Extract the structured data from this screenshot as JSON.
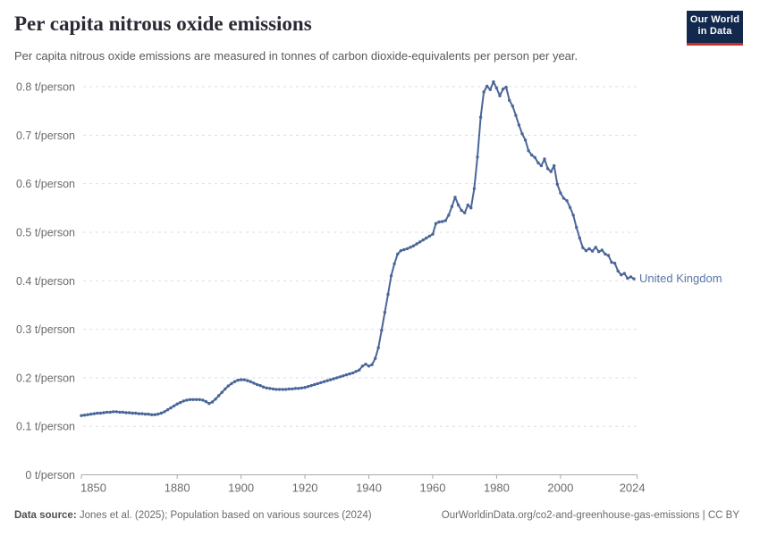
{
  "header": {
    "title": "Per capita nitrous oxide emissions",
    "subtitle": "Per capita nitrous oxide emissions are measured in tonnes of carbon dioxide-equivalents per person per year.",
    "logo": {
      "line1": "Our World",
      "line2": "in Data"
    }
  },
  "footer": {
    "source_label": "Data source:",
    "source_text": "Jones et al. (2025); Population based on various sources (2024)",
    "link_text": "OurWorldinData.org/co2-and-greenhouse-gas-emissions | CC BY"
  },
  "colors": {
    "series_line": "#4a6698",
    "series_label": "#5876a7",
    "gridline": "#dedede",
    "axis_line": "#a8a8a8",
    "tick_text": "#6b6b6b",
    "logo_bg": "#12294d",
    "logo_bar": "#c3312b"
  },
  "chart_data": {
    "type": "line",
    "title": "Per capita nitrous oxide emissions",
    "unit": "t/person",
    "xlabel": "",
    "ylabel": "t/person",
    "ylim": [
      0,
      0.8
    ],
    "xlim": [
      1850,
      2024
    ],
    "grid": "dashed horizontal",
    "legend_position": "end-of-line label",
    "point_markers": true,
    "y_ticks": [
      {
        "value": 0.0,
        "label": "0 t/person"
      },
      {
        "value": 0.1,
        "label": "0.1 t/person"
      },
      {
        "value": 0.2,
        "label": "0.2 t/person"
      },
      {
        "value": 0.3,
        "label": "0.3 t/person"
      },
      {
        "value": 0.4,
        "label": "0.4 t/person"
      },
      {
        "value": 0.5,
        "label": "0.5 t/person"
      },
      {
        "value": 0.6,
        "label": "0.6 t/person"
      },
      {
        "value": 0.7,
        "label": "0.7 t/person"
      },
      {
        "value": 0.8,
        "label": "0.8 t/person"
      }
    ],
    "x_ticks": [
      {
        "value": 1850,
        "label": "1850"
      },
      {
        "value": 1880,
        "label": "1880"
      },
      {
        "value": 1900,
        "label": "1900"
      },
      {
        "value": 1920,
        "label": "1920"
      },
      {
        "value": 1940,
        "label": "1940"
      },
      {
        "value": 1960,
        "label": "1960"
      },
      {
        "value": 1980,
        "label": "1980"
      },
      {
        "value": 2000,
        "label": "2000"
      },
      {
        "value": 2024,
        "label": "2024"
      }
    ],
    "series": [
      {
        "name": "United Kingdom",
        "year_start": 1850,
        "year_end": 2023,
        "values": [
          0.122,
          0.123,
          0.124,
          0.125,
          0.126,
          0.127,
          0.127,
          0.128,
          0.129,
          0.129,
          0.13,
          0.13,
          0.129,
          0.129,
          0.128,
          0.128,
          0.127,
          0.127,
          0.126,
          0.126,
          0.125,
          0.125,
          0.124,
          0.124,
          0.125,
          0.127,
          0.13,
          0.134,
          0.138,
          0.142,
          0.146,
          0.149,
          0.152,
          0.154,
          0.155,
          0.155,
          0.155,
          0.155,
          0.154,
          0.151,
          0.147,
          0.15,
          0.156,
          0.163,
          0.17,
          0.177,
          0.183,
          0.188,
          0.192,
          0.195,
          0.196,
          0.196,
          0.194,
          0.192,
          0.189,
          0.186,
          0.184,
          0.181,
          0.179,
          0.178,
          0.177,
          0.176,
          0.176,
          0.176,
          0.176,
          0.177,
          0.177,
          0.178,
          0.178,
          0.179,
          0.18,
          0.182,
          0.184,
          0.186,
          0.188,
          0.19,
          0.192,
          0.194,
          0.196,
          0.198,
          0.2,
          0.202,
          0.204,
          0.206,
          0.208,
          0.21,
          0.213,
          0.216,
          0.224,
          0.228,
          0.224,
          0.227,
          0.24,
          0.262,
          0.298,
          0.335,
          0.372,
          0.41,
          0.435,
          0.455,
          0.462,
          0.464,
          0.466,
          0.469,
          0.472,
          0.476,
          0.48,
          0.484,
          0.488,
          0.492,
          0.496,
          0.518,
          0.521,
          0.522,
          0.524,
          0.535,
          0.553,
          0.572,
          0.556,
          0.545,
          0.54,
          0.556,
          0.55,
          0.59,
          0.655,
          0.737,
          0.789,
          0.801,
          0.794,
          0.81,
          0.797,
          0.781,
          0.795,
          0.799,
          0.772,
          0.76,
          0.741,
          0.721,
          0.703,
          0.69,
          0.668,
          0.659,
          0.654,
          0.643,
          0.637,
          0.651,
          0.631,
          0.625,
          0.637,
          0.599,
          0.581,
          0.57,
          0.565,
          0.551,
          0.535,
          0.51,
          0.488,
          0.468,
          0.462,
          0.466,
          0.461,
          0.469,
          0.46,
          0.463,
          0.455,
          0.452,
          0.438,
          0.436,
          0.42,
          0.412,
          0.415,
          0.405,
          0.408,
          0.404
        ]
      }
    ]
  }
}
